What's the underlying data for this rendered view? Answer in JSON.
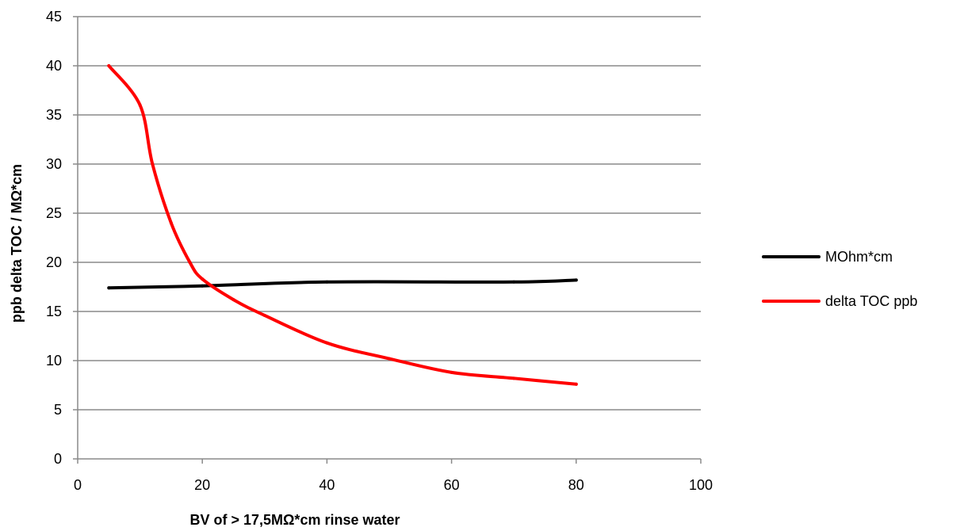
{
  "chart_data": {
    "type": "line",
    "xlabel": "BV of > 17,5MΩ*cm rinse water",
    "ylabel": "ppb delta TOC / MΩ*cm",
    "xlim": [
      0,
      100
    ],
    "ylim": [
      0,
      45
    ],
    "x_ticks": [
      "0",
      "20",
      "40",
      "60",
      "80",
      "100"
    ],
    "y_ticks": [
      "0",
      "5",
      "10",
      "15",
      "20",
      "25",
      "30",
      "35",
      "40",
      "45"
    ],
    "grid": "horizontal",
    "legend_position": "right",
    "series": [
      {
        "name": "MOhm*cm",
        "color": "#000000",
        "points": [
          [
            5,
            17.4
          ],
          [
            20,
            17.6
          ],
          [
            40,
            18.0
          ],
          [
            70,
            18.0
          ],
          [
            80,
            18.2
          ]
        ]
      },
      {
        "name": "delta TOC ppb",
        "color": "#ff0000",
        "points": [
          [
            5,
            40
          ],
          [
            10,
            36
          ],
          [
            12,
            30
          ],
          [
            15,
            24
          ],
          [
            18,
            20
          ],
          [
            20,
            18.3
          ],
          [
            25,
            16.2
          ],
          [
            30,
            14.6
          ],
          [
            40,
            11.8
          ],
          [
            50,
            10.2
          ],
          [
            60,
            8.8
          ],
          [
            70,
            8.2
          ],
          [
            80,
            7.6
          ]
        ]
      }
    ]
  }
}
